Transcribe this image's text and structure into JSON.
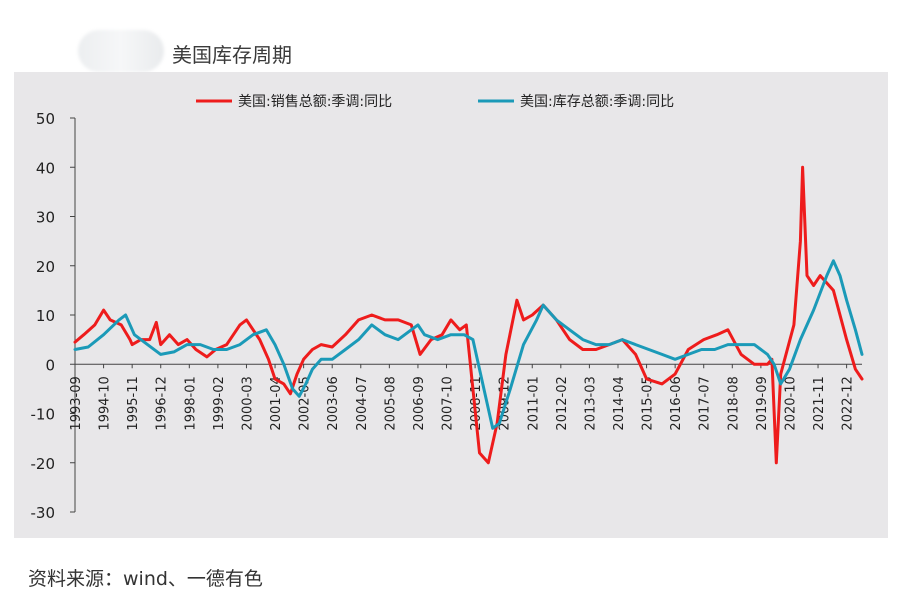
{
  "header": {
    "title": "美国库存周期"
  },
  "footer": {
    "source": "资料来源：wind、一德有色"
  },
  "chart_data": {
    "type": "line",
    "title": "美国库存周期",
    "xlabel": "",
    "ylabel": "",
    "ylim": [
      -30,
      50
    ],
    "yticks": [
      -30,
      -20,
      -10,
      0,
      10,
      20,
      30,
      40,
      50
    ],
    "xlim": [
      "1993-09",
      "2023-07"
    ],
    "xtick_labels": [
      "1993-09",
      "1994-10",
      "1995-11",
      "1996-12",
      "1998-01",
      "1999-02",
      "2000-03",
      "2001-04",
      "2002-05",
      "2003-06",
      "2004-07",
      "2005-08",
      "2006-09",
      "2007-10",
      "2008-11",
      "2009-12",
      "2011-01",
      "2012-02",
      "2013-03",
      "2014-04",
      "2015-05",
      "2016-06",
      "2017-07",
      "2018-08",
      "2019-09",
      "2020-10",
      "2021-11",
      "2022-12"
    ],
    "grid": false,
    "legend_position": "top",
    "series": [
      {
        "name": "美国:销售总额:季调:同比",
        "color": "#ee1c1c",
        "points": [
          [
            "1993-09",
            4.5
          ],
          [
            "1994-01",
            6
          ],
          [
            "1994-06",
            8
          ],
          [
            "1994-10",
            11
          ],
          [
            "1995-01",
            9
          ],
          [
            "1995-06",
            8
          ],
          [
            "1995-10",
            5
          ],
          [
            "1995-11",
            4
          ],
          [
            "1996-03",
            5
          ],
          [
            "1996-07",
            5
          ],
          [
            "1996-10",
            8.5
          ],
          [
            "1996-12",
            4
          ],
          [
            "1997-04",
            6
          ],
          [
            "1997-08",
            4
          ],
          [
            "1997-12",
            5
          ],
          [
            "1998-04",
            3
          ],
          [
            "1998-09",
            1.5
          ],
          [
            "1999-01",
            3
          ],
          [
            "1999-06",
            4
          ],
          [
            "1999-12",
            8
          ],
          [
            "2000-03",
            9
          ],
          [
            "2000-06",
            7
          ],
          [
            "2000-09",
            5
          ],
          [
            "2001-01",
            1
          ],
          [
            "2001-04",
            -3
          ],
          [
            "2001-08",
            -4
          ],
          [
            "2001-11",
            -6
          ],
          [
            "2002-02",
            -2
          ],
          [
            "2002-05",
            1
          ],
          [
            "2002-09",
            3
          ],
          [
            "2003-01",
            4
          ],
          [
            "2003-06",
            3.5
          ],
          [
            "2003-12",
            6
          ],
          [
            "2004-06",
            9
          ],
          [
            "2004-12",
            10
          ],
          [
            "2005-06",
            9
          ],
          [
            "2005-12",
            9
          ],
          [
            "2006-06",
            8
          ],
          [
            "2006-10",
            2
          ],
          [
            "2007-03",
            5
          ],
          [
            "2007-08",
            6
          ],
          [
            "2007-12",
            9
          ],
          [
            "2008-04",
            7
          ],
          [
            "2008-07",
            8
          ],
          [
            "2008-10",
            -5
          ],
          [
            "2009-01",
            -18
          ],
          [
            "2009-05",
            -20
          ],
          [
            "2009-09",
            -12
          ],
          [
            "2010-01",
            2
          ],
          [
            "2010-06",
            13
          ],
          [
            "2010-09",
            9
          ],
          [
            "2011-01",
            10
          ],
          [
            "2011-06",
            12
          ],
          [
            "2011-12",
            9
          ],
          [
            "2012-06",
            5
          ],
          [
            "2012-12",
            3
          ],
          [
            "2013-06",
            3
          ],
          [
            "2013-12",
            4
          ],
          [
            "2014-06",
            5
          ],
          [
            "2014-12",
            2
          ],
          [
            "2015-05",
            -3
          ],
          [
            "2015-12",
            -4
          ],
          [
            "2016-06",
            -2
          ],
          [
            "2016-12",
            3
          ],
          [
            "2017-07",
            5
          ],
          [
            "2018-01",
            6
          ],
          [
            "2018-06",
            7
          ],
          [
            "2018-12",
            2
          ],
          [
            "2019-06",
            0
          ],
          [
            "2019-12",
            0
          ],
          [
            "2020-02",
            1
          ],
          [
            "2020-04",
            -20
          ],
          [
            "2020-06",
            -2
          ],
          [
            "2020-09",
            3
          ],
          [
            "2020-12",
            8
          ],
          [
            "2021-03",
            25
          ],
          [
            "2021-04",
            40
          ],
          [
            "2021-06",
            18
          ],
          [
            "2021-09",
            16
          ],
          [
            "2021-12",
            18
          ],
          [
            "2022-06",
            15
          ],
          [
            "2022-12",
            5
          ],
          [
            "2023-04",
            -1
          ],
          [
            "2023-07",
            -3
          ]
        ]
      },
      {
        "name": "美国:库存总额:季调:同比",
        "color": "#1b9ab8",
        "points": [
          [
            "1993-09",
            3
          ],
          [
            "1994-03",
            3.5
          ],
          [
            "1994-10",
            6
          ],
          [
            "1995-05",
            9
          ],
          [
            "1995-08",
            10
          ],
          [
            "1995-12",
            6
          ],
          [
            "1996-06",
            4
          ],
          [
            "1996-12",
            2
          ],
          [
            "1997-06",
            2.5
          ],
          [
            "1997-12",
            4
          ],
          [
            "1998-06",
            4
          ],
          [
            "1998-12",
            3
          ],
          [
            "1999-06",
            3
          ],
          [
            "1999-12",
            4
          ],
          [
            "2000-06",
            6
          ],
          [
            "2000-12",
            7
          ],
          [
            "2001-04",
            4
          ],
          [
            "2001-08",
            0
          ],
          [
            "2001-12",
            -5
          ],
          [
            "2002-03",
            -6.5
          ],
          [
            "2002-06",
            -4
          ],
          [
            "2002-09",
            -1
          ],
          [
            "2003-01",
            1
          ],
          [
            "2003-06",
            1
          ],
          [
            "2003-12",
            3
          ],
          [
            "2004-06",
            5
          ],
          [
            "2004-12",
            8
          ],
          [
            "2005-06",
            6
          ],
          [
            "2005-12",
            5
          ],
          [
            "2006-06",
            7
          ],
          [
            "2006-09",
            8
          ],
          [
            "2006-12",
            6
          ],
          [
            "2007-06",
            5
          ],
          [
            "2007-12",
            6
          ],
          [
            "2008-06",
            6
          ],
          [
            "2008-10",
            5
          ],
          [
            "2009-03",
            -5
          ],
          [
            "2009-07",
            -13
          ],
          [
            "2009-10",
            -12
          ],
          [
            "2010-03",
            -5
          ],
          [
            "2010-09",
            4
          ],
          [
            "2011-03",
            9
          ],
          [
            "2011-06",
            12
          ],
          [
            "2011-12",
            9
          ],
          [
            "2012-06",
            7
          ],
          [
            "2012-12",
            5
          ],
          [
            "2013-06",
            4
          ],
          [
            "2013-12",
            4
          ],
          [
            "2014-06",
            5
          ],
          [
            "2014-12",
            4
          ],
          [
            "2015-06",
            3
          ],
          [
            "2015-12",
            2
          ],
          [
            "2016-06",
            1
          ],
          [
            "2016-12",
            2
          ],
          [
            "2017-06",
            3
          ],
          [
            "2017-12",
            3
          ],
          [
            "2018-06",
            4
          ],
          [
            "2018-12",
            4
          ],
          [
            "2019-06",
            4
          ],
          [
            "2019-09",
            3
          ],
          [
            "2019-12",
            2
          ],
          [
            "2020-03",
            0
          ],
          [
            "2020-06",
            -4
          ],
          [
            "2020-10",
            -1
          ],
          [
            "2021-03",
            5
          ],
          [
            "2021-09",
            11
          ],
          [
            "2022-03",
            18
          ],
          [
            "2022-06",
            21
          ],
          [
            "2022-09",
            18
          ],
          [
            "2022-12",
            13
          ],
          [
            "2023-04",
            7
          ],
          [
            "2023-07",
            2
          ]
        ]
      }
    ]
  }
}
